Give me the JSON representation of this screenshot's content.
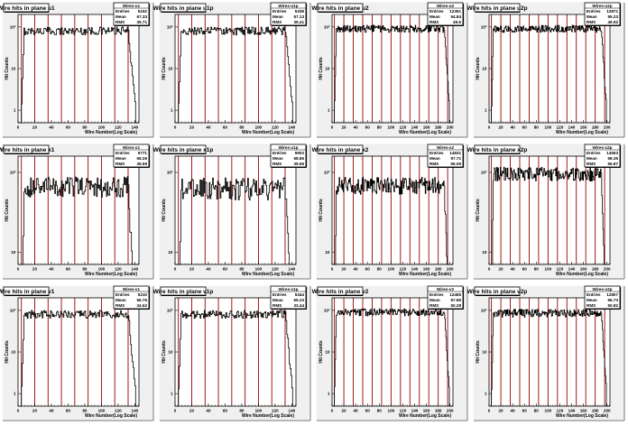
{
  "canvas": {
    "background": "#ffffff",
    "pad_background": "#f0f0f0",
    "frame_color": "#000000",
    "line_color": "#990000"
  },
  "chart_data": [
    {
      "type": "line",
      "title": "Wire hits in plane u1",
      "xlabel": "Wire Number(Log Scale)",
      "ylabel": "Hit Counts",
      "xlim": [
        0,
        145
      ],
      "ylim": [
        0.5,
        200
      ],
      "log_y": true,
      "x_ticks": [
        0,
        20,
        40,
        60,
        80,
        100,
        120,
        140
      ],
      "y_ticks": [
        {
          "value": 1,
          "label": "1"
        },
        {
          "value": 10,
          "label": "10"
        },
        {
          "value": 100,
          "label": "10²"
        }
      ],
      "stats": {
        "name": "Wires-u1",
        "entries": "5192",
        "mean": "67.33",
        "rms": "35.71"
      },
      "plateau": 80,
      "x_start": 4,
      "x_end": 140,
      "ripple": 0.22,
      "vlines_start": 4,
      "vlines_step": 16,
      "vlines_count": 9
    },
    {
      "type": "line",
      "title": "Wire hits in plane u1p",
      "xlabel": "Wire Number(Log Scale)",
      "ylabel": "Hit Counts",
      "xlim": [
        0,
        145
      ],
      "ylim": [
        0.5,
        200
      ],
      "log_y": true,
      "x_ticks": [
        0,
        20,
        40,
        60,
        80,
        100,
        120,
        140
      ],
      "y_ticks": [
        {
          "value": 1,
          "label": "1"
        },
        {
          "value": 10,
          "label": "10"
        },
        {
          "value": 100,
          "label": "10²"
        }
      ],
      "stats": {
        "name": "Wires-u1p",
        "entries": "5338",
        "mean": "67.13",
        "rms": "35.41"
      },
      "plateau": 80,
      "x_start": 4,
      "x_end": 140,
      "ripple": 0.22,
      "vlines_start": 4,
      "vlines_step": 16,
      "vlines_count": 9
    },
    {
      "type": "line",
      "title": "Wire hits in plane u2",
      "xlabel": "Wire Number(Log Scale)",
      "ylabel": "Hit Counts",
      "xlim": [
        0,
        205
      ],
      "ylim": [
        0.5,
        200
      ],
      "log_y": true,
      "x_ticks": [
        0,
        20,
        40,
        60,
        80,
        100,
        120,
        140,
        160,
        180,
        200
      ],
      "y_ticks": [
        {
          "value": 1,
          "label": "1"
        },
        {
          "value": 10,
          "label": "10"
        },
        {
          "value": 100,
          "label": "10²"
        }
      ],
      "stats": {
        "name": "Wires-u2",
        "entries": "12361",
        "mean": "94.84",
        "rms": "49.6"
      },
      "plateau": 90,
      "x_start": 4,
      "x_end": 198,
      "ripple": 0.2,
      "vlines_start": 4,
      "vlines_step": 16,
      "vlines_count": 13
    },
    {
      "type": "line",
      "title": "Wire hits in plane u2p",
      "xlabel": "Wire Number(Log Scale)",
      "ylabel": "Hit Counts",
      "xlim": [
        0,
        205
      ],
      "ylim": [
        0.5,
        200
      ],
      "log_y": true,
      "x_ticks": [
        0,
        20,
        40,
        60,
        80,
        100,
        120,
        140,
        160,
        180,
        200
      ],
      "y_ticks": [
        {
          "value": 1,
          "label": "1"
        },
        {
          "value": 10,
          "label": "10"
        },
        {
          "value": 100,
          "label": "10²"
        }
      ],
      "stats": {
        "name": "Wires-u2p",
        "entries": "12871",
        "mean": "95.23",
        "rms": "49.92"
      },
      "plateau": 90,
      "x_start": 4,
      "x_end": 198,
      "ripple": 0.2,
      "vlines_start": 4,
      "vlines_step": 16,
      "vlines_count": 13
    },
    {
      "type": "line",
      "title": "Wire hits in plane x1",
      "xlabel": "Wire Number(Log Scale)",
      "ylabel": "Hit Counts",
      "xlim": [
        0,
        145
      ],
      "ylim": [
        7,
        160
      ],
      "log_y": true,
      "x_ticks": [
        0,
        20,
        40,
        60,
        80,
        100,
        120,
        140
      ],
      "y_ticks": [
        {
          "value": 10,
          "label": "10"
        },
        {
          "value": 100,
          "label": "10²"
        }
      ],
      "stats": {
        "name": "Wires-x1",
        "entries": "9771",
        "mean": "68.26",
        "rms": "39.69"
      },
      "plateau": 66,
      "x_start": 4,
      "x_end": 140,
      "ripple": 0.3,
      "vlines_start": 4,
      "vlines_step": 16,
      "vlines_count": 9
    },
    {
      "type": "line",
      "title": "Wire hits in plane x1p",
      "xlabel": "Wire Number(Log Scale)",
      "ylabel": "Hit Counts",
      "xlim": [
        0,
        145
      ],
      "ylim": [
        7,
        160
      ],
      "log_y": true,
      "x_ticks": [
        0,
        20,
        40,
        60,
        80,
        100,
        120,
        140
      ],
      "y_ticks": [
        {
          "value": 10,
          "label": "10"
        },
        {
          "value": 100,
          "label": "10²"
        }
      ],
      "stats": {
        "name": "Wires-x1p",
        "entries": "9903",
        "mean": "68.86",
        "rms": "39.66"
      },
      "plateau": 62,
      "x_start": 4,
      "x_end": 140,
      "ripple": 0.32,
      "vlines_start": 4,
      "vlines_step": 16,
      "vlines_count": 9
    },
    {
      "type": "line",
      "title": "Wire hits in plane x2",
      "xlabel": "Wire Number(Log Scale)",
      "ylabel": "Hit Counts",
      "xlim": [
        0,
        205
      ],
      "ylim": [
        7,
        160
      ],
      "log_y": true,
      "x_ticks": [
        0,
        20,
        40,
        60,
        80,
        100,
        120,
        140,
        160,
        180,
        200
      ],
      "y_ticks": [
        {
          "value": 10,
          "label": "10"
        },
        {
          "value": 100,
          "label": "10²"
        }
      ],
      "stats": {
        "name": "Wires-x2",
        "entries": "14831",
        "mean": "97.71",
        "rms": "56.09"
      },
      "plateau": 68,
      "x_start": 4,
      "x_end": 198,
      "ripple": 0.25,
      "vlines_start": 4,
      "vlines_step": 16,
      "vlines_count": 13
    },
    {
      "type": "line",
      "title": "Wire hits in plane x2p",
      "xlabel": "Wire Number(Log Scale)",
      "ylabel": "Hit Counts",
      "xlim": [
        0,
        205
      ],
      "ylim": [
        7,
        160
      ],
      "log_y": true,
      "x_ticks": [
        0,
        20,
        40,
        60,
        80,
        100,
        120,
        140,
        160,
        180,
        200
      ],
      "y_ticks": [
        {
          "value": 10,
          "label": "10"
        },
        {
          "value": 100,
          "label": "10²"
        }
      ],
      "stats": {
        "name": "Wires-x2p",
        "entries": "14663",
        "mean": "98.35",
        "rms": "56.87"
      },
      "plateau": 95,
      "x_start": 4,
      "x_end": 198,
      "ripple": 0.2,
      "vlines_start": 4,
      "vlines_step": 16,
      "vlines_count": 13
    },
    {
      "type": "line",
      "title": "Wire hits in plane v1",
      "xlabel": "Wire Number(Log Scale)",
      "ylabel": "Hit Counts",
      "xlim": [
        0,
        145
      ],
      "ylim": [
        0.5,
        200
      ],
      "log_y": true,
      "x_ticks": [
        0,
        20,
        40,
        60,
        80,
        100,
        120,
        140
      ],
      "y_ticks": [
        {
          "value": 1,
          "label": "1"
        },
        {
          "value": 10,
          "label": "10"
        },
        {
          "value": 100,
          "label": "10²"
        }
      ],
      "stats": {
        "name": "Wires-v1",
        "entries": "5210",
        "mean": "66.76",
        "rms": "34.62"
      },
      "plateau": 80,
      "x_start": 4,
      "x_end": 140,
      "ripple": 0.22,
      "vlines_start": 4,
      "vlines_step": 16,
      "vlines_count": 9
    },
    {
      "type": "line",
      "title": "Wire hits in plane v1p",
      "xlabel": "Wire Number(Log Scale)",
      "ylabel": "Hit Counts",
      "xlim": [
        0,
        145
      ],
      "ylim": [
        0.5,
        200
      ],
      "log_y": true,
      "x_ticks": [
        0,
        20,
        40,
        60,
        80,
        100,
        120,
        140
      ],
      "y_ticks": [
        {
          "value": 1,
          "label": "1"
        },
        {
          "value": 10,
          "label": "10"
        },
        {
          "value": 100,
          "label": "10²"
        }
      ],
      "stats": {
        "name": "Wires-v1p",
        "entries": "5344",
        "mean": "65.23",
        "rms": "33.44"
      },
      "plateau": 80,
      "x_start": 4,
      "x_end": 140,
      "ripple": 0.22,
      "vlines_start": 4,
      "vlines_step": 16,
      "vlines_count": 9
    },
    {
      "type": "line",
      "title": "Wire hits in plane v2",
      "xlabel": "Wire Number(Log Scale)",
      "ylabel": "Hit Counts",
      "xlim": [
        0,
        205
      ],
      "ylim": [
        0.5,
        200
      ],
      "log_y": true,
      "x_ticks": [
        0,
        20,
        40,
        60,
        80,
        100,
        120,
        140,
        160,
        180,
        200
      ],
      "y_ticks": [
        {
          "value": 1,
          "label": "1"
        },
        {
          "value": 10,
          "label": "10"
        },
        {
          "value": 100,
          "label": "10²"
        }
      ],
      "stats": {
        "name": "Wires-v2",
        "entries": "12465",
        "mean": "97.86",
        "rms": "50.28"
      },
      "plateau": 90,
      "x_start": 4,
      "x_end": 198,
      "ripple": 0.2,
      "vlines_start": 4,
      "vlines_step": 16,
      "vlines_count": 13
    },
    {
      "type": "line",
      "title": "Wire hits in plane v2p",
      "xlabel": "Wire Number(Log Scale)",
      "ylabel": "Hit Counts",
      "xlim": [
        0,
        205
      ],
      "ylim": [
        0.5,
        200
      ],
      "log_y": true,
      "x_ticks": [
        0,
        20,
        40,
        60,
        80,
        100,
        120,
        140,
        160,
        180,
        200
      ],
      "y_ticks": [
        {
          "value": 1,
          "label": "1"
        },
        {
          "value": 10,
          "label": "10"
        },
        {
          "value": 100,
          "label": "10²"
        }
      ],
      "stats": {
        "name": "Wires-v2p",
        "entries": "12807",
        "mean": "96.73",
        "rms": "50.82"
      },
      "plateau": 85,
      "x_start": 4,
      "x_end": 198,
      "ripple": 0.22,
      "vlines_start": 4,
      "vlines_step": 16,
      "vlines_count": 13
    }
  ]
}
